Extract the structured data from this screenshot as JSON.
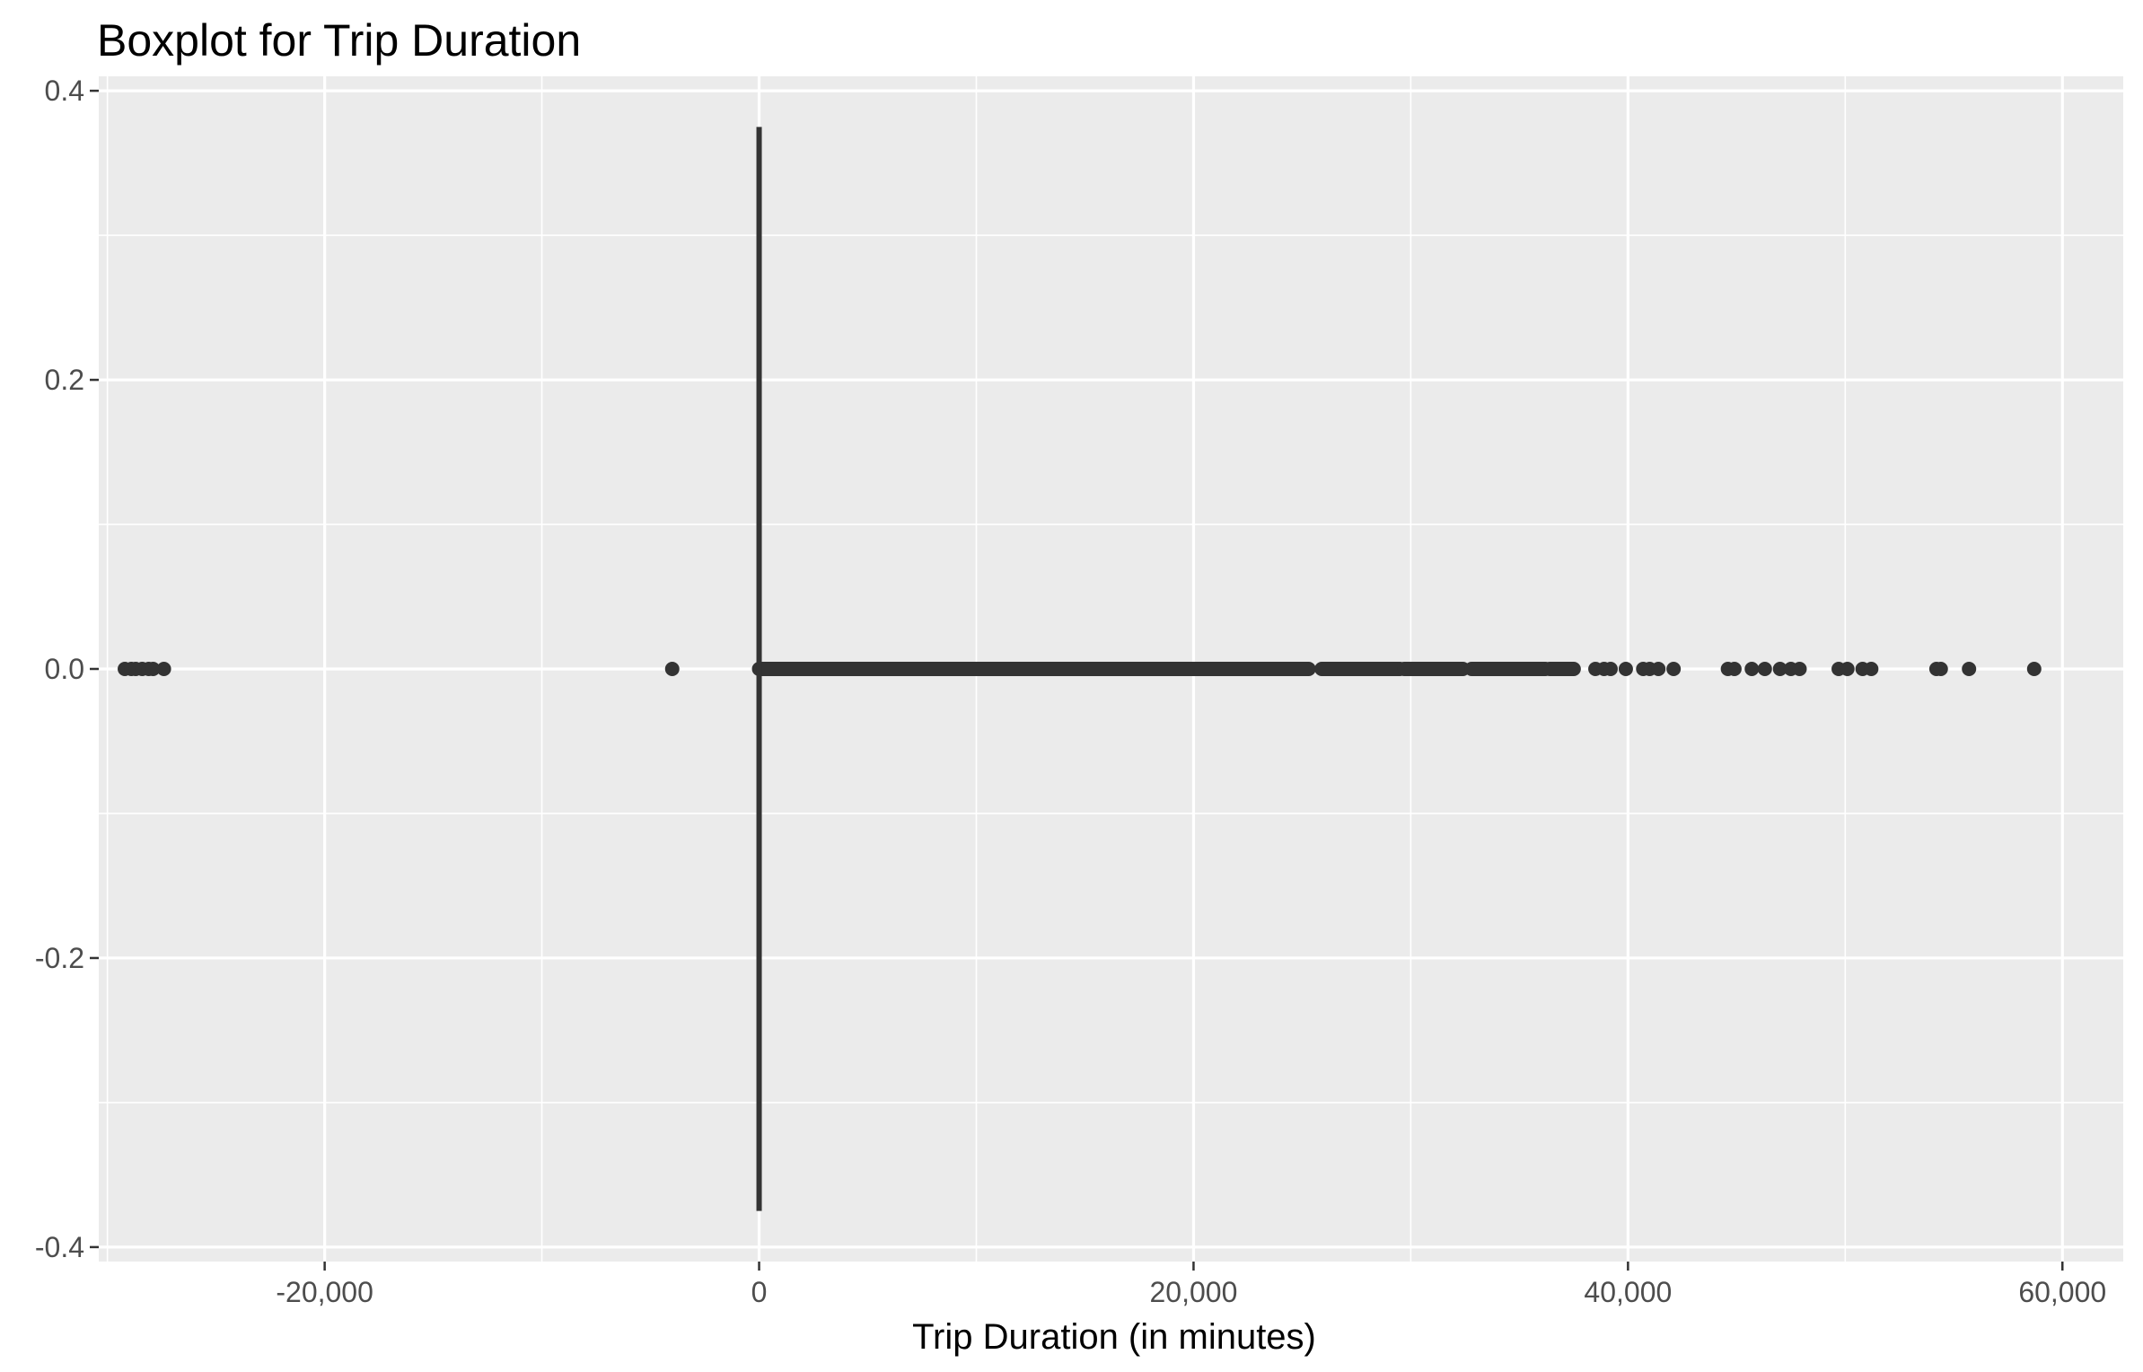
{
  "chart_data": {
    "type": "boxplot",
    "title": "Boxplot for Trip Duration",
    "xlabel": "Trip Duration (in minutes)",
    "ylabel": "",
    "orientation": "horizontal",
    "xlim": [
      -30400,
      62800
    ],
    "ylim": [
      -0.41,
      0.41
    ],
    "x_ticks": [
      -20000,
      0,
      20000,
      40000,
      60000
    ],
    "x_tick_labels": [
      "-20,000",
      "0",
      "20,000",
      "40,000",
      "60,000"
    ],
    "y_ticks": [
      -0.4,
      -0.2,
      0.0,
      0.2,
      0.4
    ],
    "y_tick_labels": [
      "-0.4",
      "-0.2",
      "0.0",
      "0.2",
      "0.4"
    ],
    "grid": true,
    "box": {
      "y_center": 0.0,
      "y_half_width": 0.375,
      "lower_hinge": 0,
      "median": 0,
      "upper_hinge": 0,
      "whisker_low": 0,
      "whisker_high": 0
    },
    "outlier_segments": [
      {
        "from": 0,
        "to": 25300
      },
      {
        "from": 25900,
        "to": 29500
      },
      {
        "from": 29700,
        "to": 32400
      },
      {
        "from": 32800,
        "to": 36200
      },
      {
        "from": 36400,
        "to": 37500
      }
    ],
    "outliers": [
      -29200,
      -28900,
      -28700,
      -28400,
      -28100,
      -27900,
      -27400,
      -4000,
      38500,
      38900,
      39200,
      39900,
      40700,
      41000,
      41400,
      42100,
      44600,
      44900,
      45700,
      46300,
      47000,
      47500,
      47900,
      49700,
      50100,
      50800,
      51200,
      54200,
      54400,
      55700,
      58700
    ],
    "colors": {
      "panel_background": "#ebebeb",
      "grid_major": "#ffffff",
      "grid_minor": "#f5f5f5",
      "marks": "#333333",
      "tick_text": "#4d4d4d"
    }
  }
}
